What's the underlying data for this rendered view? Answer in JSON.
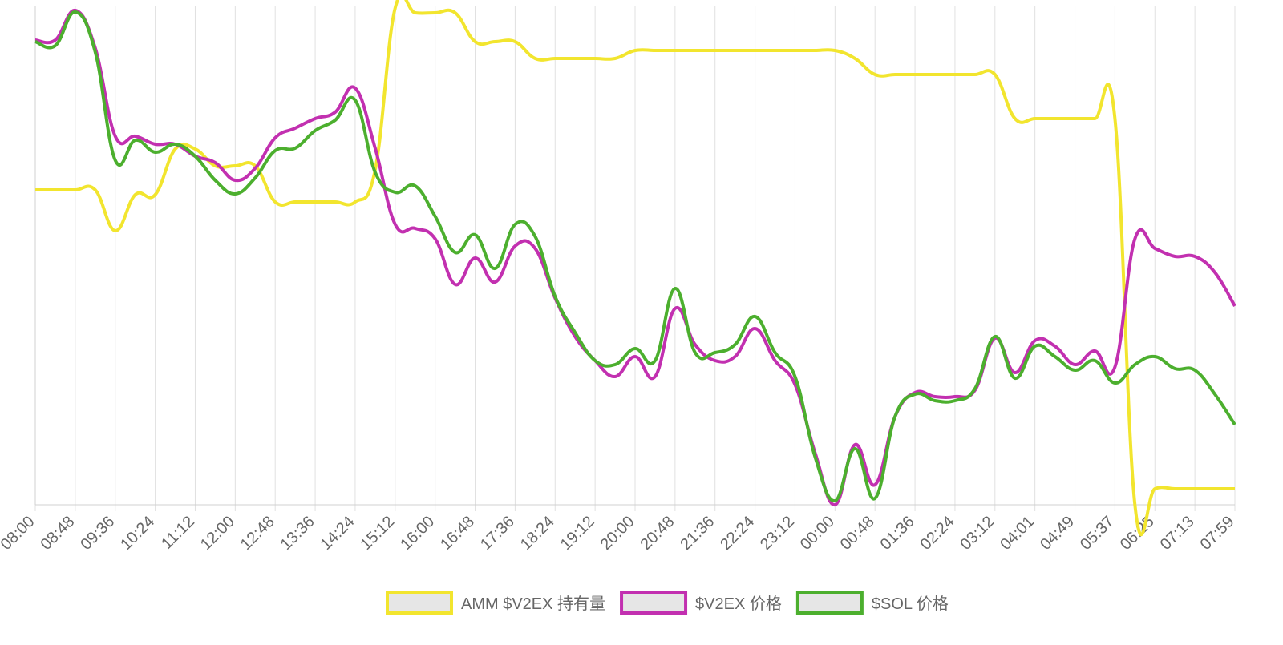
{
  "chart_data": {
    "type": "line",
    "categories": [
      "08:00",
      null,
      "08:48",
      null,
      "09:36",
      null,
      "10:24",
      null,
      "11:12",
      null,
      "12:00",
      null,
      "12:48",
      null,
      "13:36",
      null,
      "14:24",
      null,
      "15:12",
      null,
      "16:00",
      null,
      "16:48",
      null,
      "17:36",
      null,
      "18:24",
      null,
      "19:12",
      null,
      "20:00",
      null,
      "20:48",
      null,
      "21:36",
      null,
      "22:24",
      null,
      "23:12",
      null,
      "00:00",
      null,
      "00:48",
      null,
      "01:36",
      null,
      "02:24",
      null,
      "03:12",
      null,
      "04:01",
      null,
      "04:49",
      null,
      "05:37",
      null,
      "06:25",
      null,
      "07:13",
      null,
      "07:59"
    ],
    "ylim": [
      0,
      622
    ],
    "grid": true,
    "legend": "bottom",
    "series": [
      {
        "name": "AMM $V2EX 持有量",
        "color": "#f2e52e",
        "values": [
          393,
          393,
          393,
          393,
          342,
          387,
          387,
          444,
          444,
          423,
          423,
          423,
          378,
          378,
          378,
          378,
          378,
          418,
          620,
          614,
          614,
          614,
          578,
          578,
          578,
          557,
          557,
          557,
          557,
          557,
          567,
          567,
          567,
          567,
          567,
          567,
          567,
          567,
          567,
          567,
          567,
          557,
          537,
          537,
          537,
          537,
          537,
          537,
          537,
          482,
          482,
          482,
          482,
          482,
          482,
          0,
          20,
          20,
          20,
          20,
          20
        ]
      },
      {
        "name": "$V2EX 价格",
        "color": "#c230b0",
        "values": [
          580,
          580,
          617,
          570,
          460,
          460,
          450,
          450,
          435,
          427,
          405,
          420,
          458,
          470,
          482,
          490,
          520,
          445,
          350,
          345,
          332,
          275,
          308,
          278,
          323,
          320,
          258,
          210,
          180,
          160,
          185,
          160,
          245,
          200,
          180,
          185,
          220,
          180,
          150,
          65,
          0,
          75,
          25,
          110,
          140,
          135,
          135,
          143,
          208,
          165,
          205,
          198,
          175,
          192,
          172,
          332,
          320,
          310,
          310,
          290,
          248
        ]
      },
      {
        "name": "$SOL 价格",
        "color": "#4caf2e",
        "values": [
          578,
          573,
          615,
          565,
          430,
          455,
          440,
          450,
          435,
          405,
          388,
          408,
          442,
          445,
          467,
          480,
          505,
          415,
          390,
          398,
          360,
          315,
          337,
          295,
          350,
          335,
          260,
          215,
          180,
          175,
          195,
          180,
          270,
          190,
          190,
          200,
          235,
          190,
          160,
          60,
          5,
          70,
          8,
          110,
          138,
          130,
          130,
          145,
          210,
          158,
          198,
          185,
          168,
          180,
          152,
          175,
          185,
          170,
          168,
          138,
          100
        ]
      }
    ]
  }
}
